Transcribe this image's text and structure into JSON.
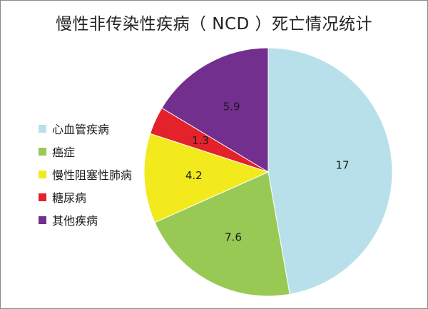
{
  "chart_data": {
    "type": "pie",
    "title": "慢性非传染性疾病（ NCD ）死亡情况统计",
    "start_angle_deg": 0,
    "direction": "clockwise",
    "legend_position": "left",
    "slices": [
      {
        "label": "心血管疾病",
        "value": 17,
        "value_label": "17",
        "color": "#b8e0ea"
      },
      {
        "label": "癌症",
        "value": 7.6,
        "value_label": "7.6",
        "color": "#97c954"
      },
      {
        "label": "慢性阻塞性肺病",
        "value": 4.2,
        "value_label": "4.2",
        "color": "#f2ea1c"
      },
      {
        "label": "糖尿病",
        "value": 1.3,
        "value_label": "1.3",
        "color": "#e3222b"
      },
      {
        "label": "其他疾病",
        "value": 5.9,
        "value_label": "5.9",
        "color": "#732f8e"
      }
    ]
  }
}
